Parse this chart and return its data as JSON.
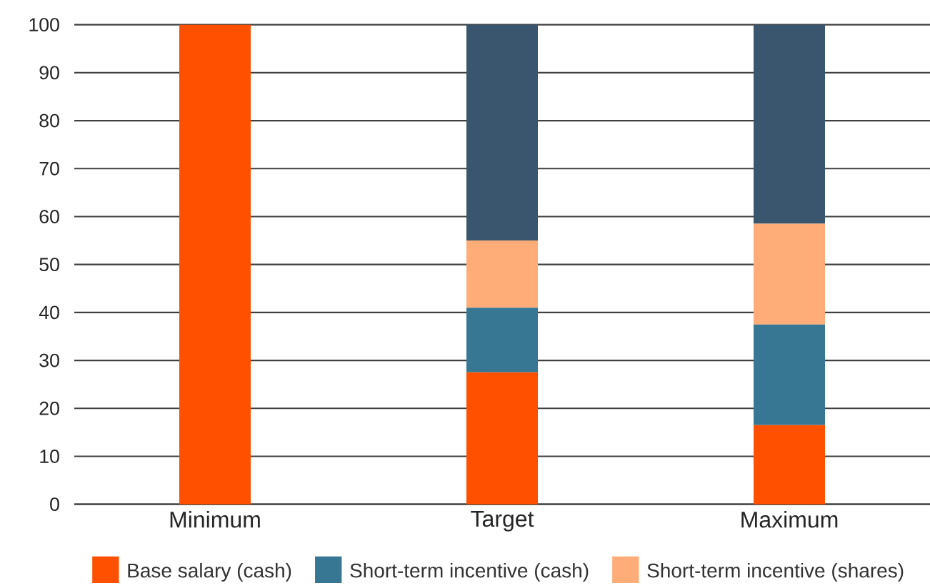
{
  "chart_data": {
    "type": "bar",
    "stacked": true,
    "categories": [
      "Minimum",
      "Target",
      "Maximum"
    ],
    "series": [
      {
        "name": "Base salary (cash)",
        "color": "#ff5000",
        "values": [
          100,
          27.5,
          16.5
        ]
      },
      {
        "name": "Short-term incentive (cash)",
        "color": "#377794",
        "values": [
          0,
          13.5,
          21
        ]
      },
      {
        "name": "Short-term incentive (shares)",
        "color": "#ffad78",
        "values": [
          0,
          14,
          21
        ]
      },
      {
        "color": "#3a566e",
        "values": [
          0,
          45,
          41.5
        ]
      }
    ],
    "ylim": [
      0,
      100
    ],
    "yticks": [
      0,
      10,
      20,
      30,
      40,
      50,
      60,
      70,
      80,
      90,
      100
    ],
    "grid": "y",
    "legend": "bottom"
  }
}
